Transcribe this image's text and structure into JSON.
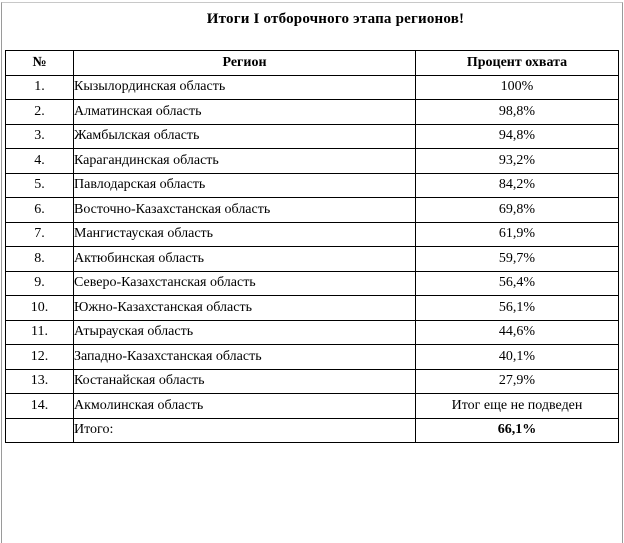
{
  "page": {
    "title": "Итоги I отборочного этапа регионов!"
  },
  "table": {
    "headers": {
      "num": "№",
      "region": "Регион",
      "percent": "Процент охвата"
    },
    "rows": [
      {
        "num": "1.",
        "region": "Кызылординская область",
        "percent": "100%"
      },
      {
        "num": "2.",
        "region": "Алматинская область",
        "percent": "98,8%"
      },
      {
        "num": "3.",
        "region": "Жамбылская область",
        "percent": "94,8%"
      },
      {
        "num": "4.",
        "region": "Карагандинская область",
        "percent": "93,2%"
      },
      {
        "num": "5.",
        "region": "Павлодарская область",
        "percent": "84,2%"
      },
      {
        "num": "6.",
        "region": "Восточно-Казахстанская область",
        "percent": "69,8%"
      },
      {
        "num": "7.",
        "region": "Мангистауская область",
        "percent": "61,9%"
      },
      {
        "num": "8.",
        "region": "Актюбинская область",
        "percent": "59,7%"
      },
      {
        "num": "9.",
        "region": "Северо-Казахстанская область",
        "percent": "56,4%"
      },
      {
        "num": "10.",
        "region": "Южно-Казахстанская область",
        "percent": "56,1%"
      },
      {
        "num": "11.",
        "region": "Атырауская область",
        "percent": "44,6%"
      },
      {
        "num": "12.",
        "region": "Западно-Казахстанская область",
        "percent": "40,1%"
      },
      {
        "num": "13.",
        "region": "Костанайская область",
        "percent": "27,9%"
      },
      {
        "num": "14.",
        "region": "Акмолинская область",
        "percent": "Итог еще не подведен"
      }
    ],
    "total": {
      "num": "",
      "label": "Итого:",
      "value": "66,1%"
    }
  },
  "colors": {
    "table_border": "#000000",
    "outer_border": "#9a9a9a",
    "background": "#ffffff",
    "text": "#000000"
  }
}
